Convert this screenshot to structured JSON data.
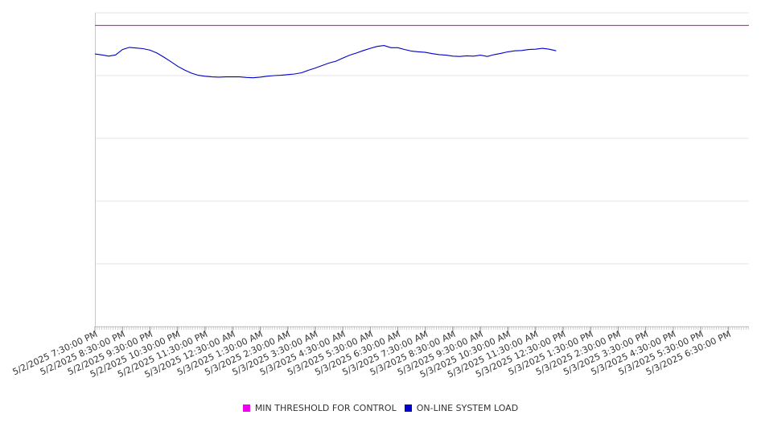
{
  "chart_data": {
    "type": "line",
    "title": "",
    "xlabel": "",
    "ylabel": "",
    "grid": true,
    "legend_position": "bottom-center",
    "ylim": [
      0,
      100
    ],
    "x_range": [
      "5/2/2025 7:30:00 PM",
      "5/3/2025 7:15:00 PM"
    ],
    "x_tick_labels": [
      "5/2/2025 7:30:00 PM",
      "5/2/2025 8:30:00 PM",
      "5/2/2025 9:30:00 PM",
      "5/2/2025 10:30:00 PM",
      "5/2/2025 11:30:00 PM",
      "5/3/2025 12:30:00 AM",
      "5/3/2025 1:30:00 AM",
      "5/3/2025 2:30:00 AM",
      "5/3/2025 3:30:00 AM",
      "5/3/2025 4:30:00 AM",
      "5/3/2025 5:30:00 AM",
      "5/3/2025 6:30:00 AM",
      "5/3/2025 7:30:00 AM",
      "5/3/2025 8:30:00 AM",
      "5/3/2025 9:30:00 AM",
      "5/3/2025 10:30:00 AM",
      "5/3/2025 11:30:00 AM",
      "5/3/2025 12:30:00 PM",
      "5/3/2025 1:30:00 PM",
      "5/3/2025 2:30:00 PM",
      "5/3/2025 3:30:00 PM",
      "5/3/2025 4:30:00 PM",
      "5/3/2025 5:30:00 PM",
      "5/3/2025 6:30:00 PM"
    ],
    "series": [
      {
        "name": "MIN THRESHOLD FOR CONTROL",
        "color": "#ee00ee",
        "points": [
          [
            "5/2/2025 7:30:00 PM",
            96
          ],
          [
            "5/3/2025 7:15:00 PM",
            96
          ]
        ]
      },
      {
        "name": "ON-LINE SYSTEM LOAD",
        "color": "#0000cc",
        "points": [
          [
            "5/2/2025 7:30:00 PM",
            86.9
          ],
          [
            "5/2/2025 7:45:00 PM",
            86.6
          ],
          [
            "5/2/2025 8:00:00 PM",
            86.2
          ],
          [
            "5/2/2025 8:15:00 PM",
            86.6
          ],
          [
            "5/2/2025 8:30:00 PM",
            88.3
          ],
          [
            "5/2/2025 8:45:00 PM",
            89.0
          ],
          [
            "5/2/2025 9:00:00 PM",
            88.8
          ],
          [
            "5/2/2025 9:15:00 PM",
            88.6
          ],
          [
            "5/2/2025 9:30:00 PM",
            88.1
          ],
          [
            "5/2/2025 9:45:00 PM",
            87.2
          ],
          [
            "5/2/2025 10:00:00 PM",
            85.9
          ],
          [
            "5/2/2025 10:15:00 PM",
            84.5
          ],
          [
            "5/2/2025 10:30:00 PM",
            83.0
          ],
          [
            "5/2/2025 10:45:00 PM",
            81.8
          ],
          [
            "5/2/2025 11:00:00 PM",
            80.8
          ],
          [
            "5/2/2025 11:15:00 PM",
            80.1
          ],
          [
            "5/2/2025 11:30:00 PM",
            79.8
          ],
          [
            "5/2/2025 11:45:00 PM",
            79.6
          ],
          [
            "5/3/2025 12:00:00 AM",
            79.5
          ],
          [
            "5/3/2025 12:15:00 AM",
            79.6
          ],
          [
            "5/3/2025 12:30:00 AM",
            79.6
          ],
          [
            "5/3/2025 12:45:00 AM",
            79.6
          ],
          [
            "5/3/2025 1:00:00 AM",
            79.4
          ],
          [
            "5/3/2025 1:15:00 AM",
            79.3
          ],
          [
            "5/3/2025 1:30:00 AM",
            79.5
          ],
          [
            "5/3/2025 1:45:00 AM",
            79.8
          ],
          [
            "5/3/2025 2:00:00 AM",
            80.0
          ],
          [
            "5/3/2025 2:15:00 AM",
            80.1
          ],
          [
            "5/3/2025 2:30:00 AM",
            80.3
          ],
          [
            "5/3/2025 2:45:00 AM",
            80.5
          ],
          [
            "5/3/2025 3:00:00 AM",
            80.9
          ],
          [
            "5/3/2025 3:15:00 AM",
            81.7
          ],
          [
            "5/3/2025 3:30:00 AM",
            82.4
          ],
          [
            "5/3/2025 3:45:00 AM",
            83.2
          ],
          [
            "5/3/2025 4:00:00 AM",
            84.0
          ],
          [
            "5/3/2025 4:15:00 AM",
            84.6
          ],
          [
            "5/3/2025 4:30:00 AM",
            85.6
          ],
          [
            "5/3/2025 4:45:00 AM",
            86.5
          ],
          [
            "5/3/2025 5:00:00 AM",
            87.2
          ],
          [
            "5/3/2025 5:15:00 AM",
            88.0
          ],
          [
            "5/3/2025 5:30:00 AM",
            88.7
          ],
          [
            "5/3/2025 5:45:00 AM",
            89.3
          ],
          [
            "5/3/2025 6:00:00 AM",
            89.6
          ],
          [
            "5/3/2025 6:15:00 AM",
            88.9
          ],
          [
            "5/3/2025 6:30:00 AM",
            88.9
          ],
          [
            "5/3/2025 6:45:00 AM",
            88.3
          ],
          [
            "5/3/2025 7:00:00 AM",
            87.8
          ],
          [
            "5/3/2025 7:15:00 AM",
            87.6
          ],
          [
            "5/3/2025 7:30:00 AM",
            87.4
          ],
          [
            "5/3/2025 7:45:00 AM",
            87.0
          ],
          [
            "5/3/2025 8:00:00 AM",
            86.7
          ],
          [
            "5/3/2025 8:15:00 AM",
            86.5
          ],
          [
            "5/3/2025 8:30:00 AM",
            86.2
          ],
          [
            "5/3/2025 8:45:00 AM",
            86.1
          ],
          [
            "5/3/2025 9:00:00 AM",
            86.3
          ],
          [
            "5/3/2025 9:15:00 AM",
            86.2
          ],
          [
            "5/3/2025 9:30:00 AM",
            86.5
          ],
          [
            "5/3/2025 9:45:00 AM",
            86.1
          ],
          [
            "5/3/2025 10:00:00 AM",
            86.7
          ],
          [
            "5/3/2025 10:15:00 AM",
            87.1
          ],
          [
            "5/3/2025 10:30:00 AM",
            87.6
          ],
          [
            "5/3/2025 10:45:00 AM",
            87.9
          ],
          [
            "5/3/2025 11:00:00 AM",
            88.0
          ],
          [
            "5/3/2025 11:15:00 AM",
            88.3
          ],
          [
            "5/3/2025 11:30:00 AM",
            88.4
          ],
          [
            "5/3/2025 11:45:00 AM",
            88.7
          ],
          [
            "5/3/2025 12:00:00 PM",
            88.4
          ],
          [
            "5/3/2025 12:15:00 PM",
            87.9
          ]
        ]
      }
    ]
  },
  "legend": {
    "items": [
      {
        "label": "MIN THRESHOLD FOR CONTROL",
        "color": "#ee00ee"
      },
      {
        "label": "ON-LINE SYSTEM LOAD",
        "color": "#0000cc"
      }
    ]
  }
}
